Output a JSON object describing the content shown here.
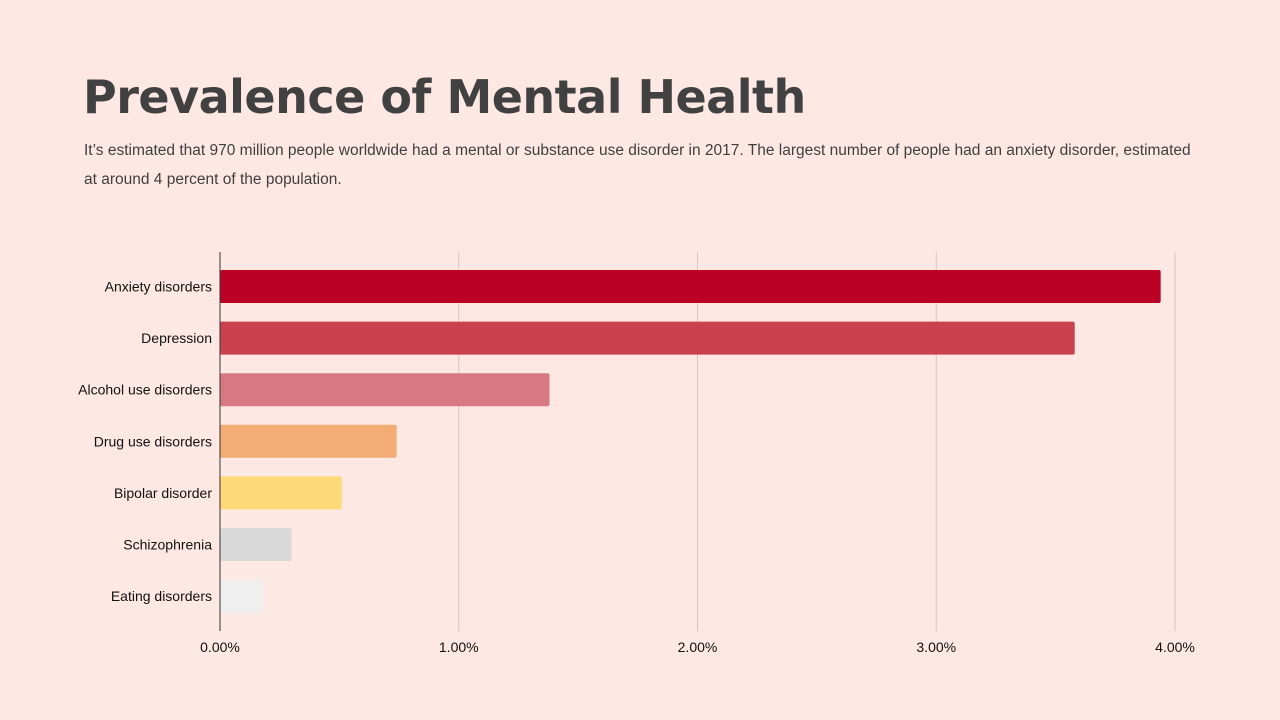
{
  "header": {
    "title": "Prevalence of Mental Health",
    "subtitle": "It’s estimated that 970 million people worldwide had a mental or substance use disorder in 2017. The largest number of people had an anxiety disorder, estimated at around 4 percent of the population."
  },
  "chart_data": {
    "type": "bar",
    "orientation": "horizontal",
    "title": "",
    "xlabel": "",
    "ylabel": "",
    "categories": [
      "Anxiety disorders",
      "Depression",
      "Alcohol use disorders",
      "Drug use disorders",
      "Bipolar disorder",
      "Schizophrenia",
      "Eating disorders"
    ],
    "values": [
      3.94,
      3.58,
      1.38,
      0.74,
      0.51,
      0.3,
      0.18
    ],
    "value_unit": "%",
    "xlim": [
      0,
      4
    ],
    "ticks": [
      0,
      1,
      2,
      3,
      4
    ],
    "tick_labels": [
      "0.00%",
      "1.00%",
      "2.00%",
      "3.00%",
      "4.00%"
    ],
    "bar_colors": [
      "#bb0026",
      "#c9404f",
      "#d87882",
      "#f2ac74",
      "#ffd978",
      "#d9d9d9",
      "#efefef"
    ],
    "grid": true,
    "legend": "none"
  }
}
